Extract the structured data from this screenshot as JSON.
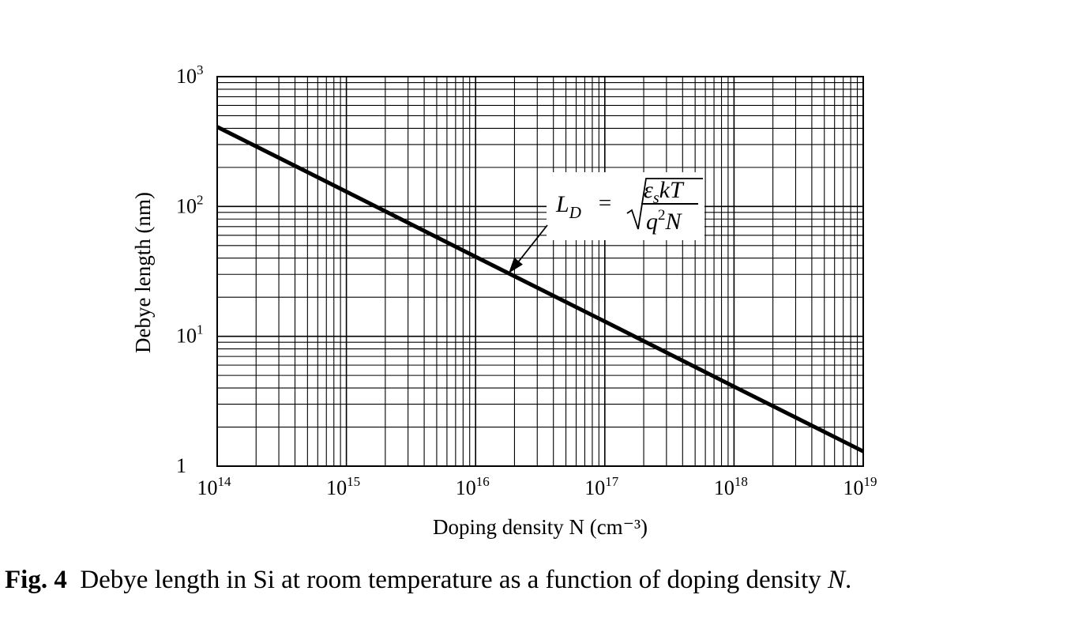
{
  "chart_data": {
    "type": "line",
    "xlabel": "Doping density N (cm⁻³)",
    "ylabel": "Debye length (nm)",
    "x_scale": "log",
    "y_scale": "log",
    "xlim": [
      100000000000000.0,
      1e+19
    ],
    "ylim": [
      1,
      1000
    ],
    "grid": true,
    "x_ticks": [
      {
        "base": "10",
        "exp": "14"
      },
      {
        "base": "10",
        "exp": "15"
      },
      {
        "base": "10",
        "exp": "16"
      },
      {
        "base": "10",
        "exp": "17"
      },
      {
        "base": "10",
        "exp": "18"
      },
      {
        "base": "10",
        "exp": "19"
      }
    ],
    "y_ticks": [
      {
        "base": "1",
        "exp": ""
      },
      {
        "base": "10",
        "exp": "1"
      },
      {
        "base": "10",
        "exp": "2"
      },
      {
        "base": "10",
        "exp": "3"
      }
    ],
    "series": [
      {
        "x": [
          100000000000000.0,
          1000000000000000.0,
          1e+16,
          1e+17,
          1e+18,
          1e+19
        ],
        "y": [
          410,
          130,
          41,
          13,
          4.1,
          1.3
        ]
      }
    ],
    "annotation": {
      "lhs": "L",
      "lhs_sub": "D",
      "equals": "=",
      "num_eps": "ε",
      "num_sub": "s",
      "num_rest": "kT",
      "den_q": "q",
      "den_exp": "2",
      "den_N": "N",
      "arrow_target_x": 1.8e+16
    }
  },
  "caption": {
    "label": "Fig. 4",
    "text": "Debye length in Si at room temperature as a function of doping density ",
    "var": "N",
    "end": "."
  }
}
